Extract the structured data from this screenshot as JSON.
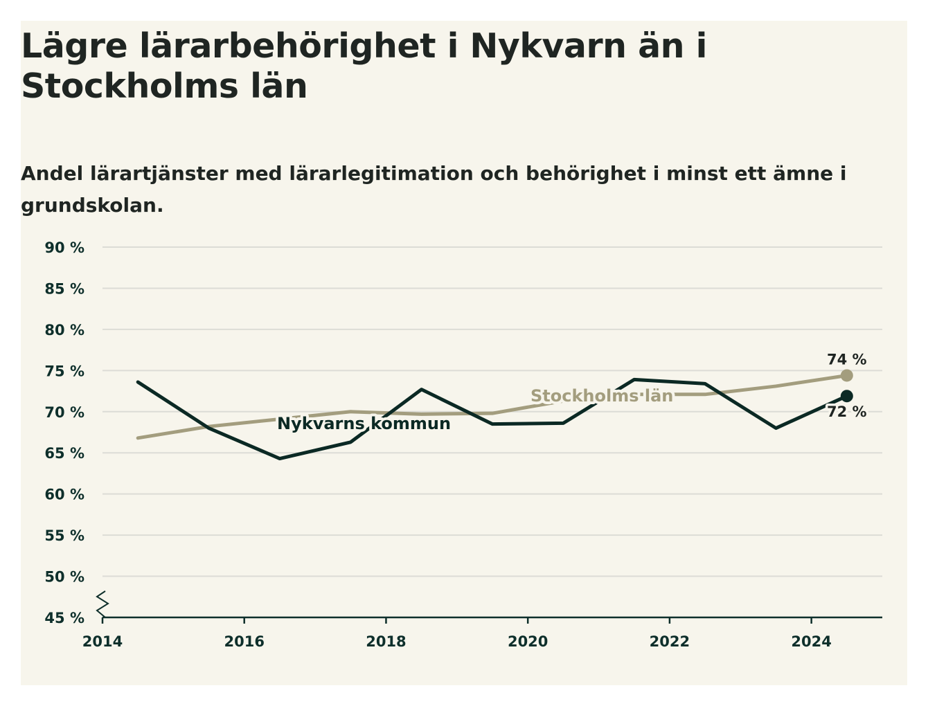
{
  "chart_data": {
    "type": "line",
    "title": "Lägre lärarbehörighet i Nykvarn än i Stockholms län",
    "subtitle": "Andel lärartjänster med lärarlegitimation och behörighet i minst ett ämne i grundskolan.",
    "x": [
      2014.5,
      2015.5,
      2016.5,
      2017.5,
      2018.5,
      2019.5,
      2020.5,
      2021.5,
      2022.5,
      2023.5,
      2024.5
    ],
    "x_ticks": [
      2014,
      2016,
      2018,
      2020,
      2022,
      2024
    ],
    "x_tick_labels": [
      "2014",
      "2016",
      "2018",
      "2020",
      "2022",
      "2024"
    ],
    "xlim": [
      2014,
      2025
    ],
    "y_ticks": [
      45,
      50,
      55,
      60,
      65,
      70,
      75,
      80,
      85,
      90
    ],
    "y_tick_labels": [
      "45 %",
      "50 %",
      "55 %",
      "60 %",
      "65 %",
      "70 %",
      "75 %",
      "80 %",
      "85 %",
      "90 %"
    ],
    "ylim": [
      45,
      90
    ],
    "y_axis_break": true,
    "grid": true,
    "series": [
      {
        "name": "Stockholms län",
        "color": "#a39d7e",
        "values": [
          66.8,
          68.2,
          69.1,
          70.0,
          69.7,
          69.8,
          71.3,
          72.1,
          72.1,
          73.1,
          74.4
        ],
        "end_label": "74 %"
      },
      {
        "name": "Nykvarns kommun",
        "color": "#0b2924",
        "values": [
          73.6,
          68.0,
          64.3,
          66.3,
          72.7,
          68.5,
          68.6,
          73.9,
          73.4,
          68.0,
          71.9
        ],
        "end_label": "72 %"
      }
    ]
  }
}
